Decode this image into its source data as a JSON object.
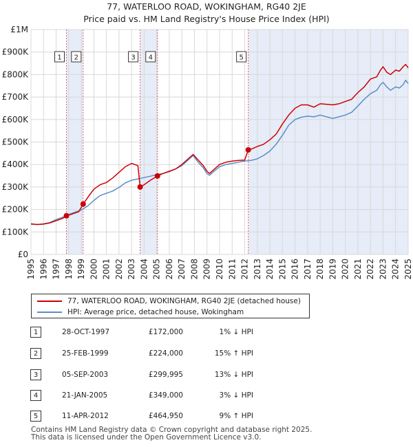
{
  "chart_data": {
    "type": "line",
    "title": "77, WATERLOO ROAD, WOKINGHAM, RG40 2JE",
    "subtitle": "Price paid vs. HM Land Registry's House Price Index (HPI)",
    "xlim": [
      1995,
      2025
    ],
    "ylim": [
      0,
      1000000
    ],
    "y_ticks": [
      {
        "value": 0,
        "label": "£0"
      },
      {
        "value": 100000,
        "label": "£100K"
      },
      {
        "value": 200000,
        "label": "£200K"
      },
      {
        "value": 300000,
        "label": "£300K"
      },
      {
        "value": 400000,
        "label": "£400K"
      },
      {
        "value": 500000,
        "label": "£500K"
      },
      {
        "value": 600000,
        "label": "£600K"
      },
      {
        "value": 700000,
        "label": "£700K"
      },
      {
        "value": 800000,
        "label": "£800K"
      },
      {
        "value": 900000,
        "label": "£900K"
      },
      {
        "value": 1000000,
        "label": "£1M"
      }
    ],
    "x_ticks": [
      "1995",
      "1996",
      "1997",
      "1998",
      "1999",
      "2000",
      "2001",
      "2002",
      "2003",
      "2004",
      "2005",
      "2006",
      "2007",
      "2008",
      "2009",
      "2010",
      "2011",
      "2012",
      "2013",
      "2014",
      "2015",
      "2016",
      "2017",
      "2018",
      "2019",
      "2020",
      "2021",
      "2022",
      "2023",
      "2024",
      "2025"
    ],
    "grid": true,
    "shaded_periods": [
      [
        1997.82,
        1999.15
      ],
      [
        2003.68,
        2005.06
      ],
      [
        2012.28,
        2025
      ]
    ],
    "series": [
      {
        "name": "77, WATERLOO ROAD, WOKINGHAM, RG40 2JE (detached house)",
        "color": "#cc0000",
        "x": [
          1995,
          1995.5,
          1996,
          1996.5,
          1997,
          1997.5,
          1997.82,
          1998.3,
          1998.8,
          1999.15,
          1999.6,
          2000,
          2000.5,
          2001,
          2001.5,
          2002,
          2002.5,
          2003,
          2003.5,
          2003.68,
          2004,
          2004.5,
          2005.06,
          2005.5,
          2006,
          2006.5,
          2007,
          2007.5,
          2007.9,
          2008.3,
          2008.7,
          2009,
          2009.2,
          2009.6,
          2010,
          2010.5,
          2011,
          2011.5,
          2012,
          2012.28,
          2012.6,
          2013,
          2013.5,
          2014,
          2014.5,
          2015,
          2015.5,
          2016,
          2016.5,
          2017,
          2017.5,
          2018,
          2018.5,
          2019,
          2019.5,
          2020,
          2020.5,
          2021,
          2021.5,
          2022,
          2022.5,
          2022.8,
          2023,
          2023.3,
          2023.6,
          2024,
          2024.3,
          2024.6,
          2024.8,
          2025
        ],
        "values": [
          136000,
          133000,
          135000,
          140000,
          150000,
          160000,
          172000,
          180000,
          190000,
          224000,
          260000,
          290000,
          310000,
          320000,
          340000,
          365000,
          390000,
          405000,
          395000,
          299995,
          310000,
          330000,
          349000,
          360000,
          370000,
          380000,
          400000,
          425000,
          445000,
          420000,
          395000,
          370000,
          360000,
          380000,
          400000,
          410000,
          415000,
          418000,
          420000,
          464950,
          470000,
          480000,
          490000,
          510000,
          535000,
          580000,
          620000,
          650000,
          665000,
          665000,
          655000,
          670000,
          668000,
          665000,
          670000,
          680000,
          690000,
          720000,
          745000,
          780000,
          790000,
          820000,
          835000,
          810000,
          800000,
          820000,
          815000,
          835000,
          845000,
          830000
        ]
      },
      {
        "name": "HPI: Average price, detached house, Wokingham",
        "color": "#5b8ec4",
        "x": [
          1995,
          1995.5,
          1996,
          1996.5,
          1997,
          1997.5,
          1998,
          1998.5,
          1999,
          1999.5,
          2000,
          2000.5,
          2001,
          2001.5,
          2002,
          2002.5,
          2003,
          2003.5,
          2004,
          2004.5,
          2005,
          2005.5,
          2006,
          2006.5,
          2007,
          2007.5,
          2007.9,
          2008.3,
          2008.7,
          2009,
          2009.2,
          2009.6,
          2010,
          2010.5,
          2011,
          2011.5,
          2012,
          2012.5,
          2013,
          2013.5,
          2014,
          2014.5,
          2015,
          2015.5,
          2016,
          2016.5,
          2017,
          2017.5,
          2018,
          2018.5,
          2019,
          2019.5,
          2020,
          2020.5,
          2021,
          2021.5,
          2022,
          2022.5,
          2022.8,
          2023,
          2023.3,
          2023.6,
          2024,
          2024.3,
          2024.6,
          2024.8,
          2025
        ],
        "values": [
          135000,
          133000,
          136000,
          142000,
          155000,
          165000,
          178000,
          188000,
          198000,
          215000,
          240000,
          262000,
          272000,
          282000,
          298000,
          318000,
          330000,
          336000,
          342000,
          348000,
          355000,
          360000,
          368000,
          380000,
          395000,
          420000,
          440000,
          410000,
          385000,
          360000,
          352000,
          372000,
          390000,
          400000,
          405000,
          410000,
          415000,
          418000,
          425000,
          440000,
          460000,
          490000,
          530000,
          575000,
          600000,
          610000,
          615000,
          612000,
          620000,
          612000,
          605000,
          612000,
          620000,
          632000,
          660000,
          690000,
          715000,
          730000,
          755000,
          765000,
          745000,
          730000,
          745000,
          740000,
          755000,
          775000,
          760000
        ]
      }
    ],
    "markers": [
      {
        "label": "1",
        "x": 1997.82,
        "y": 172000
      },
      {
        "label": "2",
        "x": 1999.15,
        "y": 224000
      },
      {
        "label": "3",
        "x": 2003.68,
        "y": 299995
      },
      {
        "label": "4",
        "x": 2005.06,
        "y": 349000
      },
      {
        "label": "5",
        "x": 2012.28,
        "y": 464950
      }
    ]
  },
  "legend": {
    "property_label": "77, WATERLOO ROAD, WOKINGHAM, RG40 2JE (detached house)",
    "hpi_label": "HPI: Average price, detached house, Wokingham"
  },
  "transactions": [
    {
      "num": "1",
      "date": "28-OCT-1997",
      "price": "£172,000",
      "hpi": "1% ↓ HPI"
    },
    {
      "num": "2",
      "date": "25-FEB-1999",
      "price": "£224,000",
      "hpi": "15% ↑ HPI"
    },
    {
      "num": "3",
      "date": "05-SEP-2003",
      "price": "£299,995",
      "hpi": "13% ↓ HPI"
    },
    {
      "num": "4",
      "date": "21-JAN-2005",
      "price": "£349,000",
      "hpi": "3% ↓ HPI"
    },
    {
      "num": "5",
      "date": "11-APR-2012",
      "price": "£464,950",
      "hpi": "9% ↑ HPI"
    }
  ],
  "footer": {
    "line1": "Contains HM Land Registry data © Crown copyright and database right 2025.",
    "line2": "This data is licensed under the Open Government Licence v3.0."
  },
  "colors": {
    "property": "#cc0000",
    "hpi": "#5b8ec4",
    "shade": "#e6ecf8",
    "marker_line": "#e06060"
  }
}
